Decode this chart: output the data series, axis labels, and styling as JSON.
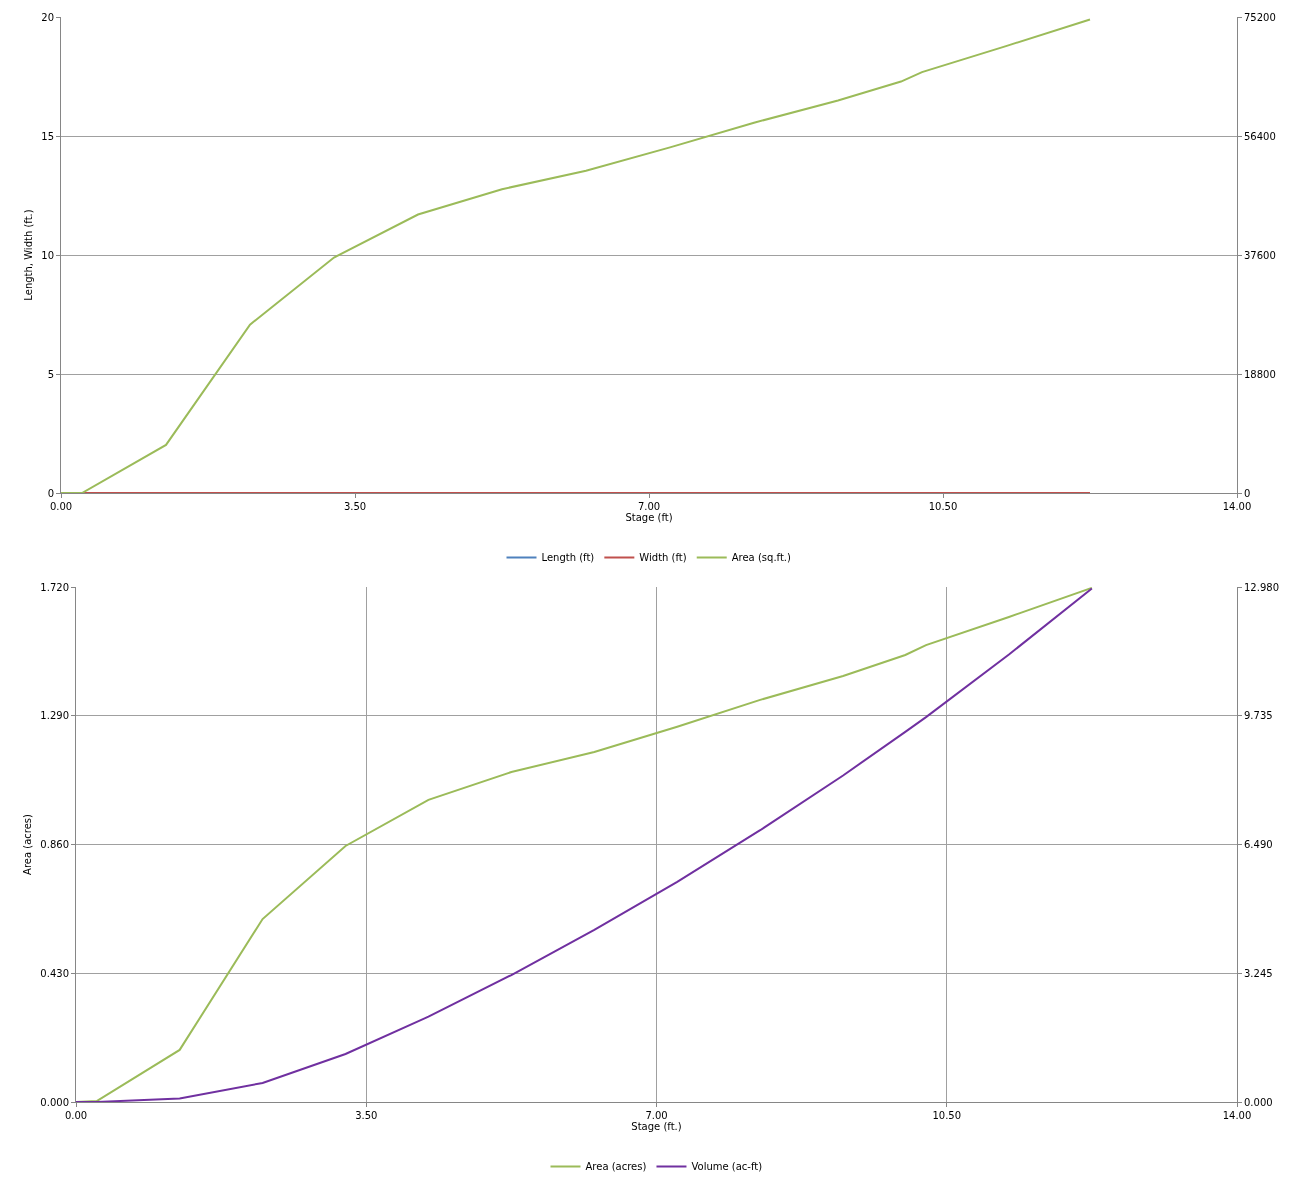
{
  "chart_data": [
    {
      "type": "line",
      "xlabel": "Stage (ft)",
      "ylabel": "Length, Width (ft.)",
      "x": [
        0,
        0.25,
        1.25,
        2.25,
        3.25,
        4.25,
        5.25,
        6.25,
        7.25,
        8.25,
        9.25,
        10.0,
        10.25,
        11.25,
        12.25
      ],
      "xlim": [
        0,
        14
      ],
      "xticks": [
        {
          "value": 0,
          "label": "0.00"
        },
        {
          "value": 3.5,
          "label": "3.50"
        },
        {
          "value": 7,
          "label": "7.00"
        },
        {
          "value": 10.5,
          "label": "10.50"
        },
        {
          "value": 14,
          "label": "14.00"
        }
      ],
      "ylim": [
        0,
        20
      ],
      "yticks": [
        0,
        5,
        10,
        15,
        20
      ],
      "y2lim": [
        0,
        75200
      ],
      "y2ticks": [
        0,
        18800,
        37600,
        56400,
        75200
      ],
      "grid": "y",
      "legend": "bottom",
      "series": [
        {
          "name": "Length (ft)",
          "color": "#4f81bd",
          "values": [
            null,
            null,
            null,
            null,
            null,
            null,
            null,
            null,
            null,
            null,
            null,
            null,
            null,
            null,
            null
          ]
        },
        {
          "name": "Width (ft)",
          "color": "#c0504d",
          "values": [
            0,
            0,
            0,
            0,
            0,
            0,
            0,
            0,
            0,
            0,
            0,
            0,
            0,
            0,
            0
          ]
        },
        {
          "name": "Area (sq.ft.)",
          "color": "#9bbb59",
          "axis": "y2",
          "values": [
            0,
            0,
            7600,
            26600,
            37200,
            44000,
            48000,
            50900,
            54600,
            58500,
            62000,
            65000,
            66500,
            70600,
            74800
          ]
        }
      ]
    },
    {
      "type": "line",
      "xlabel": "Stage (ft.)",
      "ylabel": "Area (acres)",
      "x": [
        0,
        0.25,
        1.25,
        2.25,
        3.25,
        4.25,
        5.25,
        6.25,
        7.25,
        8.25,
        9.25,
        10.0,
        10.25,
        11.25,
        12.25
      ],
      "xlim": [
        0,
        14
      ],
      "xticks": [
        {
          "value": 0,
          "label": "0.00"
        },
        {
          "value": 3.5,
          "label": "3.50"
        },
        {
          "value": 7,
          "label": "7.00"
        },
        {
          "value": 10.5,
          "label": "10.50"
        },
        {
          "value": 14,
          "label": "14.00"
        }
      ],
      "ylim": [
        0,
        1.72
      ],
      "yticks": [
        {
          "value": 0,
          "label": "0.000"
        },
        {
          "value": 0.43,
          "label": "0.430"
        },
        {
          "value": 0.86,
          "label": "0.860"
        },
        {
          "value": 1.29,
          "label": "1.290"
        },
        {
          "value": 1.72,
          "label": "1.720"
        }
      ],
      "y2lim": [
        0,
        12.98
      ],
      "y2ticks": [
        {
          "value": 0,
          "label": "0.000"
        },
        {
          "value": 3.245,
          "label": "3.245"
        },
        {
          "value": 6.49,
          "label": "6.490"
        },
        {
          "value": 9.735,
          "label": "9.735"
        },
        {
          "value": 12.98,
          "label": "12.980"
        }
      ],
      "grid": true,
      "legend": "bottom",
      "series": [
        {
          "name": "Area (acres)",
          "color": "#9bbb59",
          "values": [
            0,
            0.003,
            0.174,
            0.611,
            0.855,
            1.009,
            1.102,
            1.169,
            1.253,
            1.343,
            1.423,
            1.493,
            1.526,
            1.62,
            1.717
          ]
        },
        {
          "name": "Volume (ac-ft)",
          "color": "#7030a0",
          "axis": "y2",
          "values": [
            0,
            0,
            0.09,
            0.48,
            1.21,
            2.15,
            3.2,
            4.34,
            5.55,
            6.85,
            8.23,
            9.33,
            9.7,
            11.28,
            12.94
          ]
        }
      ]
    }
  ]
}
